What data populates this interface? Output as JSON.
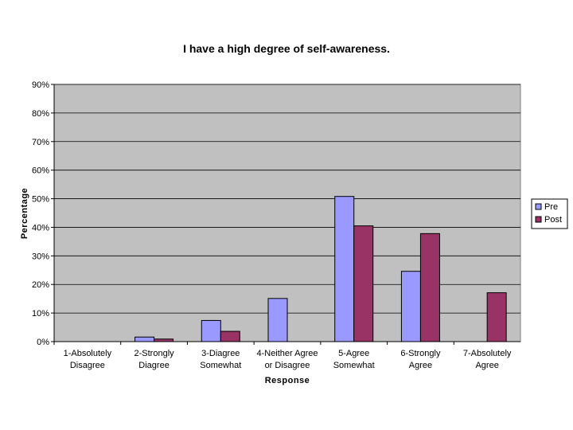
{
  "chart_data": {
    "type": "bar",
    "title": "I have a high degree of self-awareness.",
    "xlabel": "Response",
    "ylabel": "Percentage",
    "ylim": [
      0,
      90
    ],
    "yticks": [
      "0%",
      "10%",
      "20%",
      "30%",
      "40%",
      "50%",
      "60%",
      "70%",
      "80%",
      "90%"
    ],
    "categories": [
      [
        "1-Absolutely",
        "Disagree"
      ],
      [
        "2-Strongly",
        "Diagree"
      ],
      [
        "3-Diagree",
        "Somewhat"
      ],
      [
        "4-Neither Agree",
        "or Disagree"
      ],
      [
        "5-Agree",
        "Somewhat"
      ],
      [
        "6-Strongly",
        "Agree"
      ],
      [
        "7-Absolutely",
        "Agree"
      ]
    ],
    "series": [
      {
        "name": "Pre",
        "color": "#9999ff",
        "values": [
          0,
          1.6,
          7.4,
          15.1,
          50.8,
          24.6,
          0
        ]
      },
      {
        "name": "Post",
        "color": "#993366",
        "values": [
          0,
          0.9,
          3.6,
          0,
          40.5,
          37.8,
          17.1
        ]
      }
    ],
    "plot_background": "#c0c0c0",
    "grid": true,
    "legend_position": "right"
  }
}
